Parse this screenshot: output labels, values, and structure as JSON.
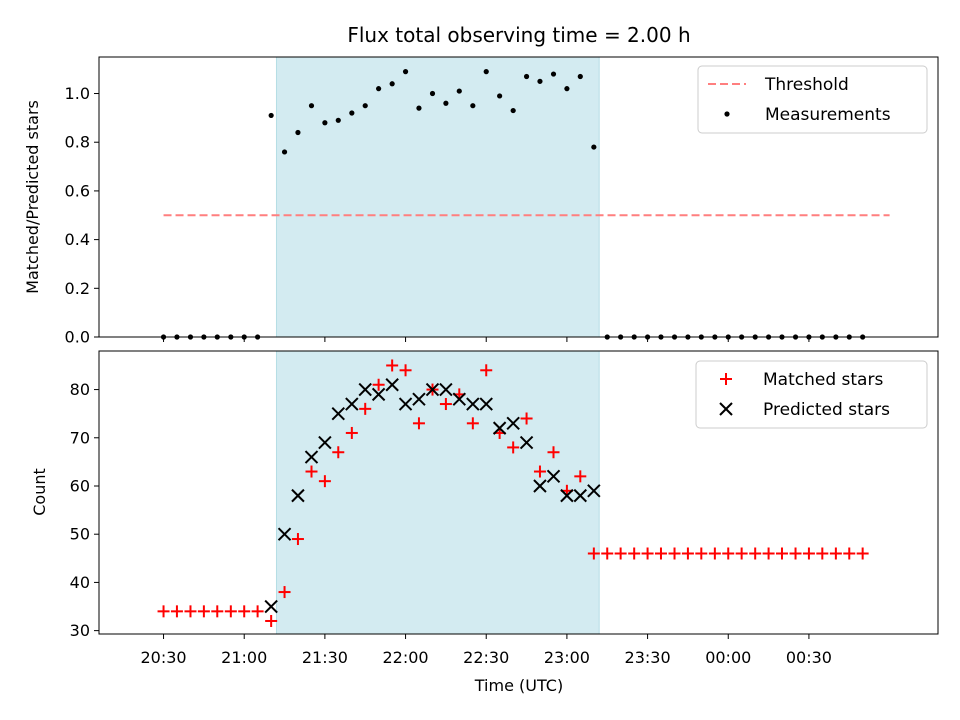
{
  "chart_data": [
    {
      "type": "scatter",
      "title": "Flux total observing time = 2.00 h",
      "ylabel": "Matched/Predicted stars",
      "xlabel": "",
      "ylim": [
        0,
        1.15
      ],
      "yticks": [
        "0.0",
        "0.2",
        "0.4",
        "0.6",
        "0.8",
        "1.0"
      ],
      "legend_position": "top-right",
      "highlight_span": {
        "start": 21.2,
        "end": 23.2,
        "color": "#d3ebf1"
      },
      "threshold": {
        "name": "Threshold",
        "value": 0.5,
        "x_start": 20.5,
        "x_end": 25.0,
        "color": "#ff7f7f"
      },
      "series": [
        {
          "name": "Measurements",
          "color": "#000000",
          "x": [
            20.5,
            20.583,
            20.667,
            20.75,
            20.833,
            20.917,
            21.0,
            21.083,
            21.167,
            21.25,
            21.333,
            21.417,
            21.5,
            21.583,
            21.667,
            21.75,
            21.833,
            21.917,
            22.0,
            22.083,
            22.167,
            22.25,
            22.333,
            22.417,
            22.5,
            22.583,
            22.667,
            22.75,
            22.833,
            22.917,
            23.0,
            23.083,
            23.167,
            23.25,
            23.333,
            23.417,
            23.5,
            23.583,
            23.667,
            23.75,
            23.833,
            23.917,
            24.0,
            24.083,
            24.167,
            24.25,
            24.333,
            24.417,
            24.5,
            24.583,
            24.667,
            24.75,
            24.833
          ],
          "values": [
            0,
            0,
            0,
            0,
            0,
            0,
            0,
            0,
            0.91,
            0.76,
            0.84,
            0.95,
            0.88,
            0.89,
            0.92,
            0.95,
            1.02,
            1.04,
            1.09,
            0.94,
            1.0,
            0.96,
            1.01,
            0.95,
            1.09,
            0.99,
            0.93,
            1.07,
            1.05,
            1.08,
            1.02,
            1.07,
            0.78,
            0,
            0,
            0,
            0,
            0,
            0,
            0,
            0,
            0,
            0,
            0,
            0,
            0,
            0,
            0,
            0,
            0,
            0,
            0,
            0
          ]
        }
      ]
    },
    {
      "type": "scatter",
      "title": "",
      "ylabel": "Count",
      "xlabel": "Time (UTC)",
      "ylim": [
        29.3,
        88
      ],
      "yticks": [
        "30",
        "40",
        "50",
        "60",
        "70",
        "80"
      ],
      "legend_position": "top-right",
      "highlight_span": {
        "start": 21.2,
        "end": 23.2,
        "color": "#d3ebf1"
      },
      "xlim": [
        20.1,
        25.3
      ],
      "xticks": [
        {
          "value": 20.5,
          "label": "20:30"
        },
        {
          "value": 21.0,
          "label": "21:00"
        },
        {
          "value": 21.5,
          "label": "21:30"
        },
        {
          "value": 22.0,
          "label": "22:00"
        },
        {
          "value": 22.5,
          "label": "22:30"
        },
        {
          "value": 23.0,
          "label": "23:00"
        },
        {
          "value": 23.5,
          "label": "23:30"
        },
        {
          "value": 24.0,
          "label": "00:00"
        },
        {
          "value": 24.5,
          "label": "00:30"
        }
      ],
      "series": [
        {
          "name": "Matched stars",
          "marker": "plus",
          "color": "#ff0000",
          "x": [
            20.5,
            20.583,
            20.667,
            20.75,
            20.833,
            20.917,
            21.0,
            21.083,
            21.167,
            21.25,
            21.333,
            21.417,
            21.5,
            21.583,
            21.667,
            21.75,
            21.833,
            21.917,
            22.0,
            22.083,
            22.167,
            22.25,
            22.333,
            22.417,
            22.5,
            22.583,
            22.667,
            22.75,
            22.833,
            22.917,
            23.0,
            23.083,
            23.167,
            23.25,
            23.333,
            23.417,
            23.5,
            23.583,
            23.667,
            23.75,
            23.833,
            23.917,
            24.0,
            24.083,
            24.167,
            24.25,
            24.333,
            24.417,
            24.5,
            24.583,
            24.667,
            24.75,
            24.833
          ],
          "values": [
            34,
            34,
            34,
            34,
            34,
            34,
            34,
            34,
            32,
            38,
            49,
            63,
            61,
            67,
            71,
            76,
            81,
            85,
            84,
            73,
            80,
            77,
            79,
            73,
            84,
            71,
            68,
            74,
            63,
            67,
            59,
            62,
            46,
            46,
            46,
            46,
            46,
            46,
            46,
            46,
            46,
            46,
            46,
            46,
            46,
            46,
            46,
            46,
            46,
            46,
            46,
            46,
            46
          ]
        },
        {
          "name": "Predicted stars",
          "marker": "x",
          "color": "#000000",
          "x": [
            21.167,
            21.25,
            21.333,
            21.417,
            21.5,
            21.583,
            21.667,
            21.75,
            21.833,
            21.917,
            22.0,
            22.083,
            22.167,
            22.25,
            22.333,
            22.417,
            22.5,
            22.583,
            22.667,
            22.75,
            22.833,
            22.917,
            23.0,
            23.083,
            23.167
          ],
          "values": [
            35,
            50,
            58,
            66,
            69,
            75,
            77,
            80,
            79,
            81,
            77,
            78,
            80,
            80,
            78,
            77,
            77,
            72,
            73,
            69,
            60,
            62,
            58,
            58,
            59
          ]
        }
      ]
    }
  ]
}
